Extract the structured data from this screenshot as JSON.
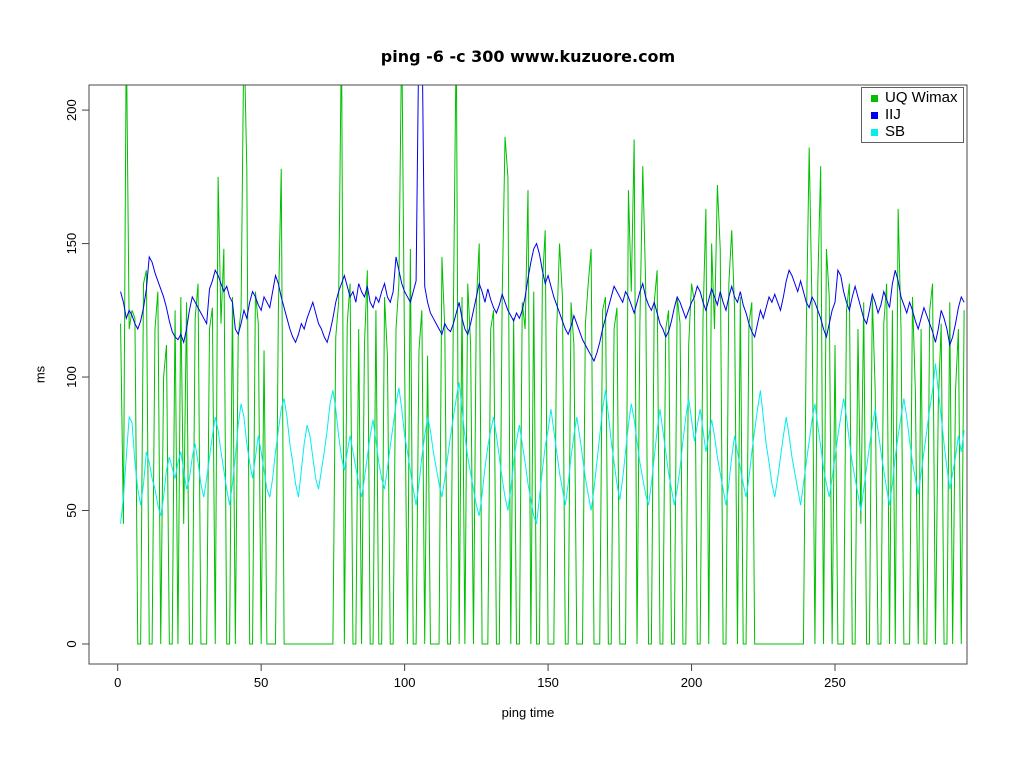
{
  "title": "ping -6 -c 300 www.kuzuore.com",
  "axes": {
    "xlabel": "ping time",
    "ylabel": "ms"
  },
  "chart_data": {
    "type": "line",
    "title": "ping -6 -c 300 www.kuzuore.com",
    "xlabel": "ping time",
    "ylabel": "ms",
    "x_ticks": [
      0,
      50,
      100,
      150,
      200,
      250
    ],
    "y_ticks": [
      0,
      50,
      100,
      150,
      200
    ],
    "xlim": [
      -10,
      296
    ],
    "ylim": [
      -7.5,
      209.4
    ],
    "grid": false,
    "legend_position": "top-right",
    "x_start": 1,
    "series": [
      {
        "name": "UQ Wimax",
        "color": "#00C000",
        "values": [
          120,
          45,
          230,
          118,
          125,
          122,
          0,
          0,
          135,
          140,
          0,
          0,
          118,
          132,
          0,
          100,
          112,
          0,
          0,
          125,
          0,
          130,
          45,
          128,
          0,
          0,
          122,
          135,
          0,
          0,
          0,
          118,
          126,
          0,
          175,
          120,
          148,
          0,
          0,
          130,
          0,
          115,
          125,
          230,
          178,
          0,
          0,
          132,
          120,
          0,
          110,
          0,
          0,
          0,
          0,
          125,
          178,
          0,
          0,
          0,
          0,
          0,
          0,
          0,
          0,
          0,
          0,
          0,
          0,
          0,
          0,
          0,
          0,
          0,
          0,
          115,
          128,
          230,
          0,
          120,
          135,
          0,
          0,
          118,
          0,
          112,
          140,
          0,
          0,
          125,
          0,
          0,
          130,
          108,
          0,
          0,
          118,
          135,
          230,
          105,
          0,
          148,
          0,
          0,
          110,
          125,
          0,
          108,
          0,
          0,
          0,
          0,
          145,
          118,
          0,
          0,
          125,
          230,
          0,
          130,
          0,
          135,
          112,
          0,
          128,
          150,
          0,
          0,
          0,
          118,
          125,
          0,
          0,
          130,
          190,
          175,
          0,
          122,
          0,
          0,
          128,
          118,
          170,
          0,
          132,
          0,
          0,
          135,
          155,
          0,
          0,
          0,
          118,
          150,
          130,
          0,
          0,
          128,
          112,
          0,
          0,
          0,
          120,
          135,
          148,
          0,
          0,
          0,
          125,
          130,
          0,
          0,
          118,
          126,
          0,
          0,
          0,
          170,
          132,
          189,
          0,
          120,
          179,
          135,
          0,
          0,
          128,
          140,
          0,
          0,
          118,
          125,
          0,
          0,
          130,
          120,
          0,
          0,
          112,
          135,
          128,
          0,
          0,
          122,
          163,
          0,
          150,
          118,
          172,
          148,
          0,
          0,
          135,
          155,
          125,
          0,
          130,
          0,
          0,
          120,
          128,
          0,
          0,
          0,
          0,
          0,
          0,
          0,
          0,
          0,
          0,
          0,
          0,
          0,
          0,
          0,
          0,
          0,
          0,
          118,
          186,
          125,
          0,
          135,
          179,
          0,
          148,
          130,
          0,
          112,
          0,
          0,
          0,
          125,
          135,
          0,
          0,
          118,
          45,
          128,
          0,
          0,
          130,
          95,
          0,
          0,
          120,
          135,
          0,
          125,
          0,
          163,
          118,
          0,
          0,
          0,
          130,
          95,
          0,
          118,
          0,
          0,
          125,
          135,
          0,
          90,
          120,
          0,
          0,
          128,
          0,
          95,
          118,
          0,
          125
        ]
      },
      {
        "name": "IIJ",
        "color": "#0000EE",
        "values": [
          132,
          128,
          122,
          125,
          123,
          120,
          118,
          121,
          126,
          133,
          145,
          143,
          139,
          136,
          133,
          130,
          126,
          121,
          117,
          115,
          114,
          116,
          113,
          118,
          125,
          130,
          128,
          126,
          124,
          122,
          120,
          133,
          136,
          140,
          138,
          135,
          132,
          134,
          130,
          128,
          118,
          116,
          120,
          125,
          122,
          128,
          132,
          130,
          127,
          125,
          130,
          128,
          126,
          132,
          138,
          135,
          130,
          126,
          122,
          118,
          115,
          113,
          116,
          120,
          118,
          122,
          125,
          128,
          124,
          120,
          118,
          115,
          113,
          117,
          122,
          128,
          132,
          135,
          138,
          134,
          130,
          132,
          128,
          135,
          132,
          130,
          134,
          128,
          126,
          130,
          128,
          132,
          135,
          130,
          128,
          132,
          145,
          140,
          135,
          132,
          130,
          128,
          132,
          136,
          232,
          238,
          134,
          128,
          124,
          122,
          120,
          118,
          116,
          120,
          118,
          117,
          120,
          124,
          128,
          122,
          118,
          116,
          120,
          125,
          130,
          135,
          132,
          128,
          133,
          129,
          126,
          124,
          127,
          131,
          128,
          125,
          123,
          121,
          124,
          122,
          125,
          130,
          137,
          143,
          148,
          150,
          146,
          140,
          135,
          138,
          134,
          130,
          127,
          124,
          121,
          118,
          116,
          119,
          123,
          120,
          117,
          114,
          112,
          110,
          108,
          106,
          109,
          113,
          118,
          122,
          126,
          130,
          134,
          132,
          130,
          128,
          132,
          130,
          127,
          124,
          128,
          132,
          135,
          130,
          127,
          125,
          128,
          124,
          120,
          118,
          115,
          117,
          121,
          126,
          130,
          128,
          125,
          122,
          125,
          128,
          130,
          134,
          132,
          128,
          125,
          129,
          133,
          130,
          127,
          132,
          128,
          125,
          130,
          134,
          130,
          128,
          132,
          127,
          124,
          120,
          117,
          115,
          120,
          125,
          122,
          126,
          130,
          128,
          131,
          128,
          125,
          130,
          136,
          140,
          138,
          135,
          132,
          136,
          132,
          128,
          126,
          130,
          128,
          125,
          122,
          118,
          115,
          120,
          125,
          128,
          140,
          138,
          132,
          128,
          125,
          130,
          134,
          130,
          126,
          122,
          120,
          125,
          131,
          128,
          124,
          127,
          132,
          129,
          126,
          135,
          140,
          136,
          130,
          127,
          124,
          128,
          125,
          121,
          118,
          122,
          126,
          123,
          120,
          117,
          113,
          118,
          125,
          122,
          118,
          112,
          115,
          120,
          126,
          130,
          128
        ]
      },
      {
        "name": "SB",
        "color": "#00EEEE",
        "values": [
          45,
          55,
          70,
          85,
          83,
          68,
          58,
          52,
          60,
          72,
          68,
          62,
          58,
          52,
          48,
          55,
          65,
          70,
          66,
          62,
          68,
          72,
          65,
          58,
          62,
          70,
          75,
          68,
          60,
          55,
          62,
          70,
          78,
          85,
          80,
          72,
          65,
          58,
          52,
          60,
          70,
          82,
          90,
          85,
          75,
          68,
          62,
          70,
          78,
          72,
          65,
          58,
          55,
          62,
          72,
          80,
          88,
          92,
          85,
          75,
          68,
          60,
          55,
          65,
          75,
          82,
          78,
          70,
          62,
          58,
          65,
          72,
          80,
          90,
          95,
          88,
          78,
          70,
          65,
          72,
          78,
          72,
          66,
          60,
          55,
          62,
          70,
          78,
          84,
          76,
          68,
          62,
          58,
          66,
          74,
          82,
          90,
          96,
          88,
          78,
          72,
          65,
          58,
          52,
          60,
          70,
          78,
          85,
          80,
          72,
          66,
          60,
          55,
          62,
          70,
          78,
          85,
          92,
          98,
          88,
          78,
          70,
          64,
          58,
          52,
          48,
          56,
          66,
          74,
          80,
          85,
          78,
          70,
          62,
          55,
          50,
          58,
          68,
          76,
          82,
          75,
          68,
          60,
          54,
          48,
          45,
          55,
          65,
          74,
          80,
          88,
          80,
          72,
          64,
          58,
          52,
          60,
          70,
          78,
          85,
          78,
          70,
          62,
          56,
          50,
          58,
          68,
          78,
          88,
          95,
          86,
          76,
          68,
          60,
          54,
          62,
          72,
          82,
          90,
          84,
          76,
          68,
          62,
          56,
          52,
          60,
          70,
          80,
          88,
          80,
          72,
          64,
          58,
          52,
          58,
          66,
          76,
          85,
          92,
          84,
          76,
          82,
          88,
          80,
          72,
          78,
          84,
          78,
          70,
          64,
          58,
          52,
          60,
          70,
          78,
          72,
          66,
          60,
          55,
          62,
          72,
          80,
          88,
          95,
          85,
          75,
          68,
          60,
          55,
          62,
          70,
          78,
          85,
          78,
          70,
          64,
          58,
          52,
          60,
          68,
          76,
          84,
          90,
          82,
          74,
          66,
          60,
          55,
          62,
          70,
          78,
          85,
          92,
          85,
          76,
          68,
          62,
          56,
          50,
          58,
          66,
          74,
          82,
          88,
          80,
          72,
          65,
          58,
          52,
          60,
          70,
          78,
          85,
          92,
          85,
          76,
          68,
          62,
          56,
          64,
          72,
          80,
          88,
          95,
          105,
          95,
          85,
          75,
          66,
          58,
          64,
          70,
          78,
          72,
          80
        ]
      }
    ]
  }
}
